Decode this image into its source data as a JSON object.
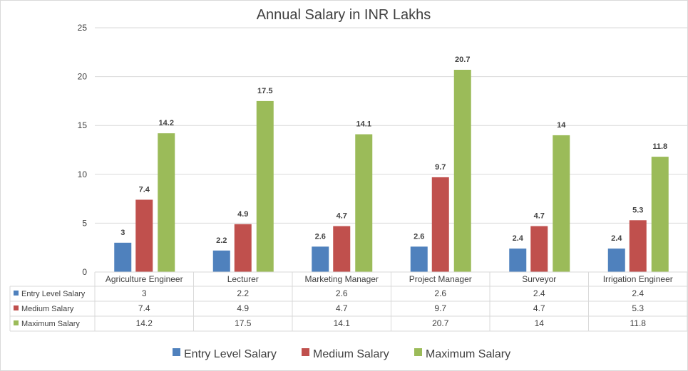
{
  "chart_data": {
    "type": "bar",
    "title": "Annual Salary in INR Lakhs",
    "xlabel": "",
    "ylabel": "",
    "ylim": [
      0,
      25
    ],
    "yticks": [
      0,
      5,
      10,
      15,
      20,
      25
    ],
    "grid": true,
    "legend_position": "bottom",
    "categories": [
      "Agriculture Engineer",
      "Lecturer",
      "Marketing Manager",
      "Project Manager",
      "Surveyor",
      "Irrigation Engineer"
    ],
    "series": [
      {
        "name": "Entry Level Salary",
        "color": "#4f81bd",
        "values": [
          3,
          2.2,
          2.6,
          2.6,
          2.4,
          2.4
        ]
      },
      {
        "name": "Medium Salary",
        "color": "#c0504d",
        "values": [
          7.4,
          4.9,
          4.7,
          9.7,
          4.7,
          5.3
        ]
      },
      {
        "name": "Maximum Salary",
        "color": "#9bbb59",
        "values": [
          14.2,
          17.5,
          14.1,
          20.7,
          14,
          11.8
        ]
      }
    ],
    "data_table": true
  }
}
